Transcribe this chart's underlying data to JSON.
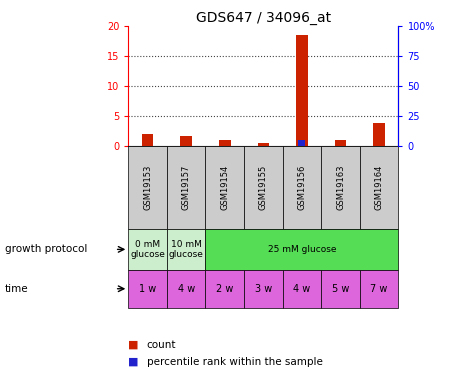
{
  "title": "GDS647 / 34096_at",
  "samples": [
    "GSM19153",
    "GSM19157",
    "GSM19154",
    "GSM19155",
    "GSM19156",
    "GSM19163",
    "GSM19164"
  ],
  "count_values": [
    2.1,
    1.7,
    1.1,
    0.6,
    18.5,
    1.1,
    3.9
  ],
  "percentile_values": [
    0.3,
    0.4,
    0.2,
    0.2,
    5.0,
    0.2,
    0.4
  ],
  "left_ylim": [
    0,
    20
  ],
  "right_ylim": [
    0,
    100
  ],
  "left_yticks": [
    0,
    5,
    10,
    15,
    20
  ],
  "right_yticks": [
    0,
    25,
    50,
    75,
    100
  ],
  "right_yticklabels": [
    "0",
    "25",
    "50",
    "75",
    "100%"
  ],
  "growth_groups": [
    {
      "label": "0 mM\nglucose",
      "start": 0,
      "end": 1,
      "color": "#cceecc"
    },
    {
      "label": "10 mM\nglucose",
      "start": 1,
      "end": 2,
      "color": "#cceecc"
    },
    {
      "label": "25 mM glucose",
      "start": 2,
      "end": 7,
      "color": "#55dd55"
    }
  ],
  "time_labels": [
    "1 w",
    "4 w",
    "2 w",
    "3 w",
    "4 w",
    "5 w",
    "7 w"
  ],
  "time_color": "#dd66dd",
  "bar_color_count": "#cc2200",
  "bar_color_pct": "#2222cc",
  "grid_color": "#444444",
  "sample_row_color": "#cccccc",
  "legend_count_label": "count",
  "legend_pct_label": "percentile rank within the sample",
  "left_label": "growth protocol",
  "time_label": "time"
}
